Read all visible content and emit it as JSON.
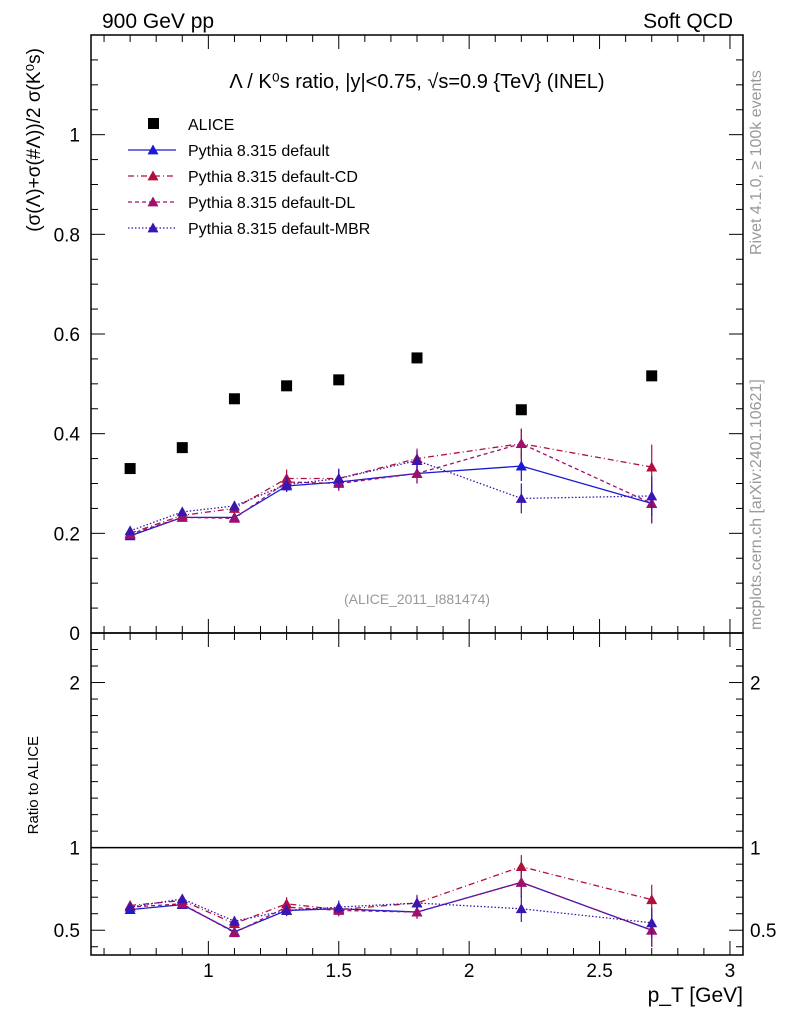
{
  "header": {
    "left": "900 GeV pp",
    "right": "Soft QCD"
  },
  "side": {
    "rivet": "Rivet 4.1.0, ≥ 100k events",
    "mcplots": "mcplots.cern.ch [arXiv:2401.10621]"
  },
  "chart_data": {
    "type": "scatter",
    "title": "Λ / K⁰s ratio, |y|<0.75, √s=0.9 {TeV} (INEL)",
    "ylabel": "(σ(Λ)+σ(#Λ))/2 σ(K⁰s)",
    "xlabel": "p_T [GeV]",
    "analysis_label": "(ALICE_2011_I881474)",
    "xlim": [
      0.55,
      3.05
    ],
    "main_ylim": [
      0,
      1.2
    ],
    "main_yticks": [
      0,
      0.2,
      0.4,
      0.6,
      0.8,
      1
    ],
    "ratio_ylabel": "Ratio to ALICE",
    "ratio_ylim": [
      0.35,
      2.3
    ],
    "ratio_yticks": [
      0.5,
      1,
      2
    ],
    "xticks": [
      1,
      1.5,
      2,
      2.5,
      3
    ],
    "x": [
      0.7,
      0.9,
      1.1,
      1.3,
      1.5,
      1.8,
      2.2,
      2.7
    ],
    "data": {
      "name": "ALICE",
      "color": "#000000",
      "values": [
        0.33,
        0.372,
        0.47,
        0.496,
        0.508,
        0.552,
        0.448,
        0.516
      ]
    },
    "series": [
      {
        "name": "Pythia 8.315 default",
        "color": "#1a1ad6",
        "dash": "",
        "values": [
          0.195,
          0.232,
          0.232,
          0.295,
          0.303,
          0.32,
          0.335,
          0.26
        ],
        "errors": [
          0.006,
          0.007,
          0.007,
          0.012,
          0.015,
          0.02,
          0.03,
          0.04
        ],
        "ratios": [
          0.625,
          0.655,
          0.49,
          0.62,
          0.63,
          0.61,
          0.79,
          0.5
        ],
        "ratio_errors": [
          0.02,
          0.02,
          0.025,
          0.03,
          0.035,
          0.04,
          0.09,
          0.1
        ]
      },
      {
        "name": "Pythia 8.315 default-CD",
        "color": "#b0103c",
        "dash": "6,3,1,3",
        "values": [
          0.2,
          0.236,
          0.25,
          0.31,
          0.31,
          0.35,
          0.38,
          0.333
        ],
        "errors": [
          0.006,
          0.008,
          0.01,
          0.018,
          0.018,
          0.02,
          0.03,
          0.045
        ],
        "ratios": [
          0.65,
          0.68,
          0.54,
          0.66,
          0.625,
          0.665,
          0.885,
          0.685
        ],
        "ratio_errors": [
          0.02,
          0.025,
          0.03,
          0.04,
          0.04,
          0.05,
          0.07,
          0.09
        ]
      },
      {
        "name": "Pythia 8.315 default-DL",
        "color": "#a0106a",
        "dash": "4,3",
        "values": [
          0.198,
          0.232,
          0.23,
          0.303,
          0.3,
          0.32,
          0.38,
          0.26
        ],
        "errors": [
          0.006,
          0.007,
          0.008,
          0.015,
          0.015,
          0.02,
          0.03,
          0.04
        ],
        "ratios": [
          0.64,
          0.66,
          0.485,
          0.64,
          0.62,
          0.61,
          0.79,
          0.5
        ],
        "ratio_errors": [
          0.02,
          0.02,
          0.025,
          0.035,
          0.035,
          0.04,
          0.09,
          0.1
        ]
      },
      {
        "name": "Pythia 8.315 default-MBR",
        "color": "#3a16b0",
        "dash": "1.5,2",
        "values": [
          0.205,
          0.243,
          0.255,
          0.298,
          0.31,
          0.346,
          0.27,
          0.275
        ],
        "errors": [
          0.006,
          0.008,
          0.01,
          0.015,
          0.02,
          0.02,
          0.03,
          0.04
        ],
        "ratios": [
          0.64,
          0.69,
          0.555,
          0.62,
          0.64,
          0.665,
          0.63,
          0.545
        ],
        "ratio_errors": [
          0.02,
          0.025,
          0.03,
          0.035,
          0.04,
          0.04,
          0.08,
          0.09
        ]
      }
    ]
  }
}
